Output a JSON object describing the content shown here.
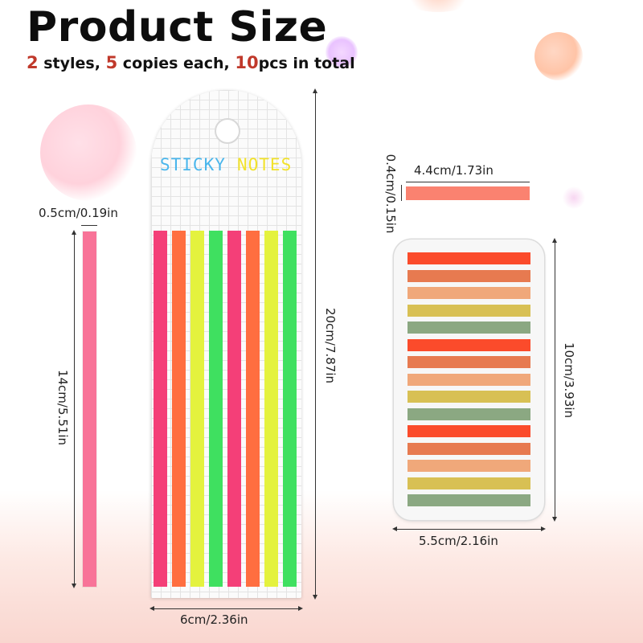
{
  "title": "Product Size",
  "subtitle": {
    "n1": "2",
    "t1": " styles, ",
    "n2": "5",
    "t2": " copies each, ",
    "n3": "10",
    "t3": "pcs in total"
  },
  "single_strip": {
    "width_label": "0.5cm/0.19in",
    "height_label": "14cm/5.51in",
    "color": "#f87398"
  },
  "card": {
    "label_word1": "STICKY",
    "label_word2": "NOTES",
    "label_color1": "#4ab6ec",
    "label_color2": "#f2e22b",
    "height_label": "20cm/7.87in",
    "width_label": "6cm/2.36in",
    "strip_colors": [
      "#f43f78",
      "#ff6e40",
      "#e4f23e",
      "#3fe060",
      "#f43f78",
      "#ff6e40",
      "#e4f23e",
      "#3fe060"
    ]
  },
  "small_strip": {
    "length_label": "4.4cm/1.73in",
    "height_label": "0.4cm/0.15in",
    "color": "#fa8270"
  },
  "tray": {
    "height_label": "10cm/3.93in",
    "width_label": "5.5cm/2.16in",
    "strip_colors": [
      "#fb4b2b",
      "#e77a50",
      "#f0a87a",
      "#d8c054",
      "#8ba882",
      "#fb4b2b",
      "#e77a50",
      "#f0a87a",
      "#d8c054",
      "#8ba882",
      "#fb4b2b",
      "#e77a50",
      "#f0a87a",
      "#d8c054",
      "#8ba882"
    ]
  }
}
